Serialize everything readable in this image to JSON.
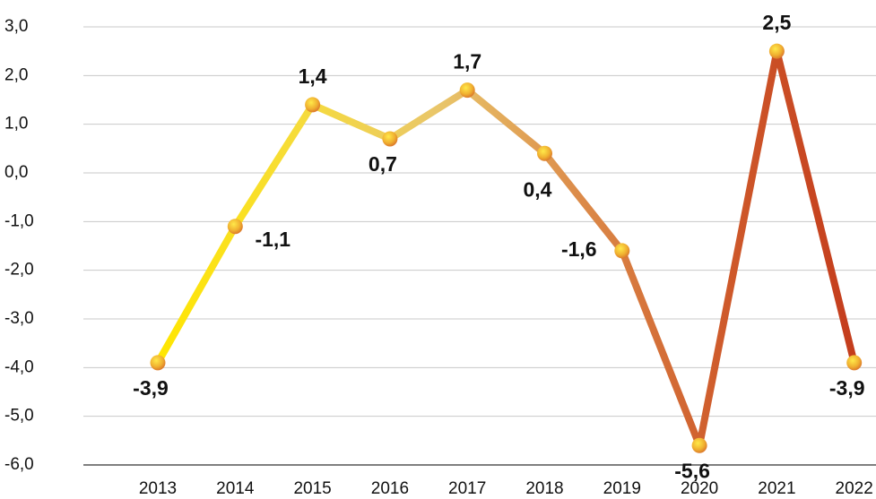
{
  "chart_data": {
    "type": "line",
    "categories": [
      "2013",
      "2014",
      "2015",
      "2016",
      "2017",
      "2018",
      "2019",
      "2020",
      "2021",
      "2022"
    ],
    "values": [
      -3.9,
      -1.1,
      1.4,
      0.7,
      1.7,
      0.4,
      -1.6,
      -5.6,
      2.5,
      -3.9
    ],
    "value_labels": [
      "-3,9",
      "-1,1",
      "1,4",
      "0,7",
      "1,7",
      "0,4",
      "-1,6",
      "-5,6",
      "2,5",
      "-3,9"
    ],
    "colors": [
      "#ffe600",
      "#f6dc3a",
      "#e9c66a",
      "#dc8c4a",
      "#cf5c2c",
      "#c43c1c"
    ],
    "ylim": [
      -6,
      3
    ],
    "yticks": [
      {
        "value": 3,
        "label": "3,0"
      },
      {
        "value": 2,
        "label": "2,0"
      },
      {
        "value": 1,
        "label": "1,0"
      },
      {
        "value": 0,
        "label": "0,0"
      },
      {
        "value": -1,
        "label": "-1,0"
      },
      {
        "value": -2,
        "label": "-2,0"
      },
      {
        "value": -3,
        "label": "-3,0"
      },
      {
        "value": -4,
        "label": "-4,0"
      },
      {
        "value": -5,
        "label": "-5,0"
      },
      {
        "value": -6,
        "label": "-6,0"
      }
    ],
    "grid": true
  }
}
